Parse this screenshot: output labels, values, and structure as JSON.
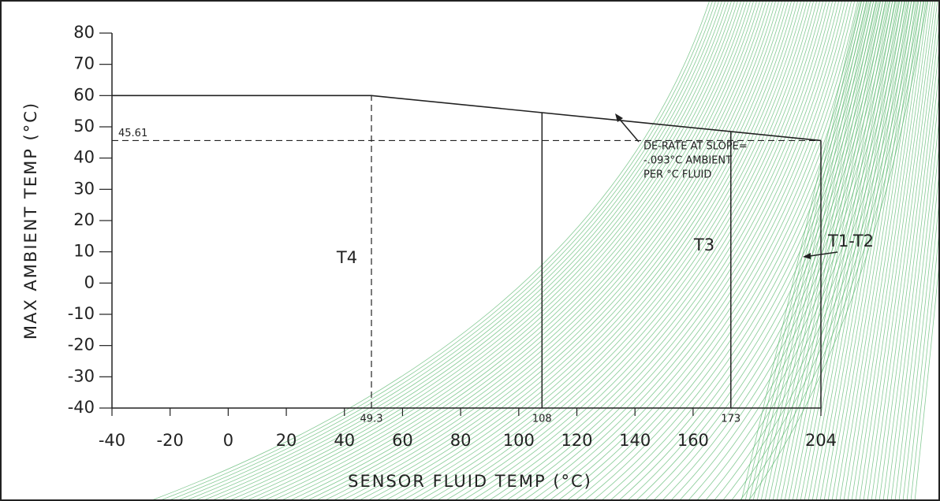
{
  "chart_data": {
    "type": "line",
    "xlabel": "SENSOR FLUID TEMP (°C)",
    "ylabel": "MAX AMBIENT TEMP (°C)",
    "xlim": [
      -40,
      204
    ],
    "ylim": [
      -40,
      80
    ],
    "xticks": [
      -40,
      -20,
      0,
      20,
      40,
      60,
      80,
      100,
      120,
      140,
      160,
      204
    ],
    "yticks": [
      -40,
      -30,
      -20,
      -10,
      0,
      10,
      20,
      30,
      40,
      50,
      60,
      70,
      80
    ],
    "x": [
      -40,
      49.3,
      204
    ],
    "series": [
      {
        "color": "#222222",
        "values": [
          60,
          60,
          45.61
        ]
      }
    ],
    "dashed_x_lines": [
      49.3
    ],
    "solid_x_lines": [
      108,
      173
    ],
    "dashed_y_lines": [
      45.61
    ],
    "zones": [
      "T4",
      "T3",
      "T1-T2"
    ],
    "annotation": [
      "DE-RATE AT SLOPE=",
      "-.093°C AMBIENT",
      "PER °C FLUID"
    ]
  }
}
